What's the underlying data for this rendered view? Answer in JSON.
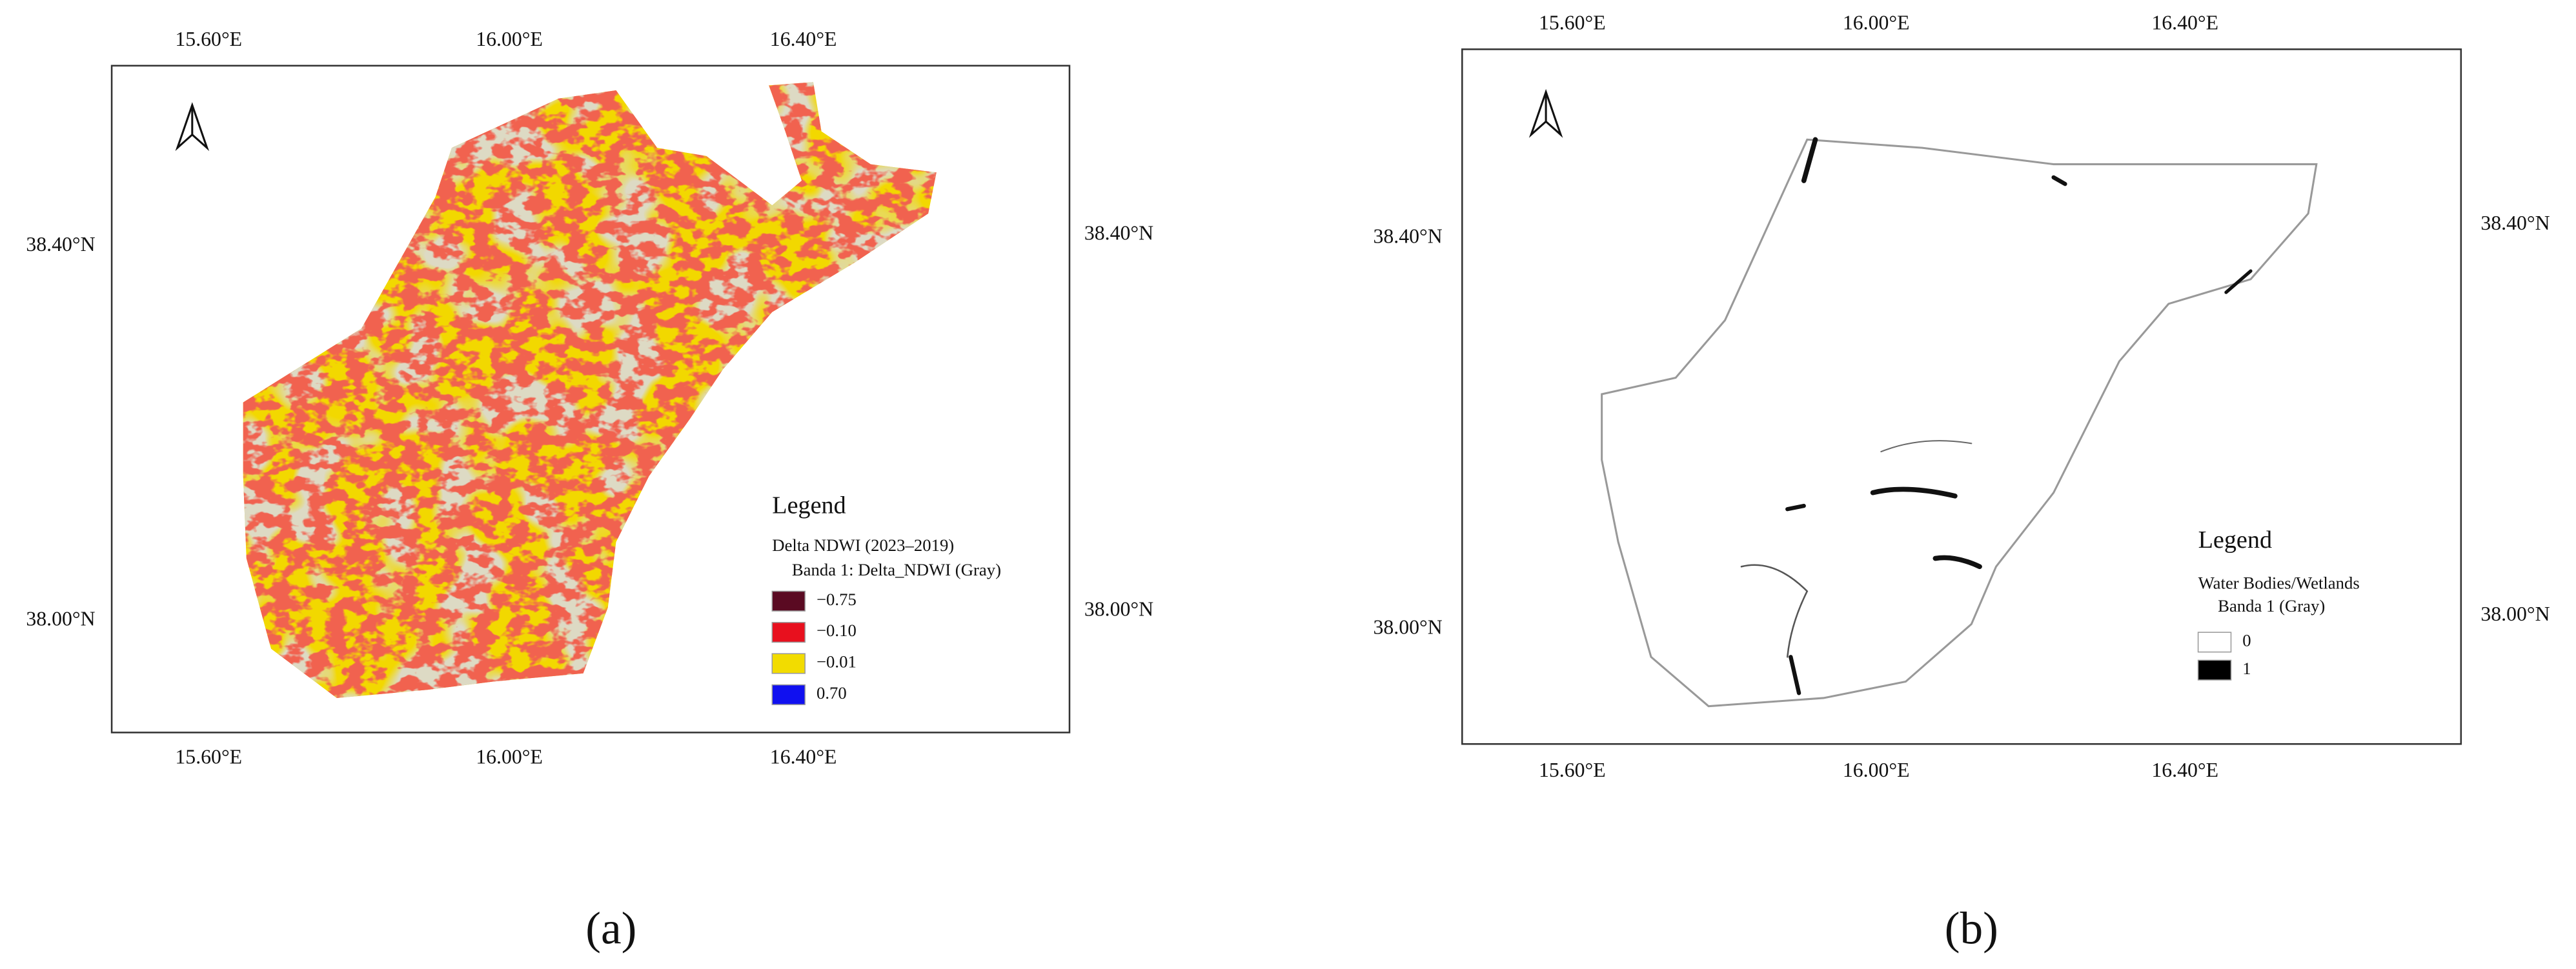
{
  "panels": [
    {
      "caption": "(a)",
      "top_axis": [
        "15.60°E",
        "16.00°E",
        "16.40°E"
      ],
      "bottom_axis": [
        "15.60°E",
        "16.00°E",
        "16.40°E"
      ],
      "left_axis": [
        "38.40°N",
        "38.00°N"
      ],
      "right_axis": [
        "38.40°N",
        "38.00°N"
      ],
      "legend": {
        "title": "Legend",
        "layer": "Delta NDWI (2023–2019)",
        "band": "Banda 1: Delta_NDWI (Gray)",
        "items": [
          {
            "label": "−0.75",
            "color": "#5a0a22"
          },
          {
            "label": "−0.10",
            "color": "#e8101e"
          },
          {
            "label": "−0.01",
            "color": "#f2dc00"
          },
          {
            "label": "0.70",
            "color": "#1010f0"
          }
        ]
      }
    },
    {
      "caption": "(b)",
      "top_axis": [
        "15.60°E",
        "16.00°E",
        "16.40°E"
      ],
      "bottom_axis": [
        "15.60°E",
        "16.00°E",
        "16.40°E"
      ],
      "left_axis": [
        "38.40°N",
        "38.00°N"
      ],
      "right_axis": [
        "38.40°N",
        "38.00°N"
      ],
      "legend": {
        "title": "Legend",
        "layer": "Water Bodies/Wetlands",
        "band": "Banda 1 (Gray)",
        "items": [
          {
            "label": "0",
            "color": "#ffffff"
          },
          {
            "label": "1",
            "color": "#000000"
          }
        ]
      }
    }
  ]
}
